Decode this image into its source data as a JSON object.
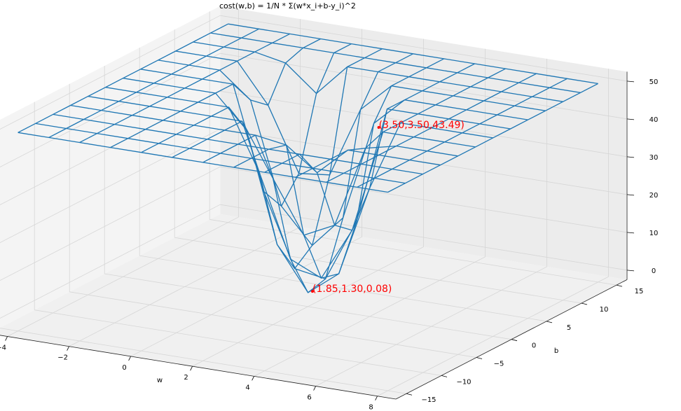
{
  "chart_data": {
    "type": "wireframe3d",
    "title": "cost(w,b) = 1/N * Σ(w*x_i+b-y_i)^2",
    "xlabel": "w",
    "ylabel": "b",
    "color": "#1f77b4",
    "annotation_color": "#ff0000",
    "x": [
      -4,
      -3,
      -2,
      -1,
      0,
      1,
      2,
      3,
      4,
      5,
      6,
      7,
      8
    ],
    "y": [
      -15,
      -12.5,
      -10,
      -7.5,
      -5,
      -2.5,
      0,
      2.5,
      5,
      7.5,
      10,
      12.5,
      15
    ],
    "z": [
      [
        50,
        50,
        50,
        50,
        50,
        50,
        50,
        50,
        50,
        50,
        50,
        50,
        50
      ],
      [
        50,
        50,
        50,
        50,
        50,
        50,
        50,
        50,
        50,
        50,
        50,
        50,
        50
      ],
      [
        50,
        50,
        50,
        50,
        50,
        50,
        50,
        50,
        50,
        50,
        50,
        50,
        50
      ],
      [
        50,
        50,
        50,
        50,
        50,
        50,
        50,
        50,
        43.39,
        39.64,
        48.39,
        50,
        50
      ],
      [
        50,
        50,
        50,
        50,
        50,
        50,
        41.65,
        22.9,
        16.65,
        22.9,
        41.65,
        50,
        50
      ],
      [
        50,
        50,
        50,
        50,
        50,
        33.83,
        12.58,
        3.83,
        7.58,
        23.83,
        50,
        50,
        50
      ],
      [
        50,
        50,
        50,
        50,
        36.19,
        12.44,
        1.19,
        2.44,
        16.19,
        42.44,
        50,
        50,
        50
      ],
      [
        50,
        50,
        50,
        48.73,
        22.48,
        8.73,
        7.48,
        18.73,
        42.48,
        50,
        50,
        50,
        50
      ],
      [
        50,
        50,
        50,
        42.7,
        26.45,
        22.7,
        31.45,
        50,
        50,
        50,
        50,
        50,
        50
      ],
      [
        50,
        50,
        50,
        50,
        48.11,
        50,
        50,
        50,
        50,
        50,
        50,
        50,
        50
      ],
      [
        50,
        50,
        50,
        50,
        50,
        50,
        50,
        50,
        50,
        50,
        50,
        50,
        50
      ],
      [
        50,
        50,
        50,
        50,
        50,
        50,
        50,
        50,
        50,
        50,
        50,
        50,
        50
      ],
      [
        50,
        50,
        50,
        50,
        50,
        50,
        50,
        50,
        50,
        50,
        50,
        50,
        50
      ]
    ],
    "xlim": [
      -4.6,
      8.6
    ],
    "ylim": [
      -16.5,
      16.5
    ],
    "zlim": [
      -2.5,
      52.5
    ],
    "xticks": [
      {
        "value": -4,
        "label": "−4"
      },
      {
        "value": -2,
        "label": "−2"
      },
      0,
      2,
      4,
      6,
      8
    ],
    "yticks": [
      {
        "value": -15,
        "label": "−15"
      },
      {
        "value": -10,
        "label": "−10"
      },
      {
        "value": -5,
        "label": "−5"
      },
      0,
      5,
      10,
      15
    ],
    "zticks": [
      0,
      10,
      20,
      30,
      40,
      50
    ],
    "grid": true,
    "annotations": [
      {
        "x": 3.5,
        "y": 3.5,
        "z": 43.49,
        "text": "(3.50,3.50,43.49)"
      },
      {
        "x": 1.85,
        "y": 1.3,
        "z": 0.08,
        "text": "(1.85,1.30,0.08)"
      }
    ]
  }
}
